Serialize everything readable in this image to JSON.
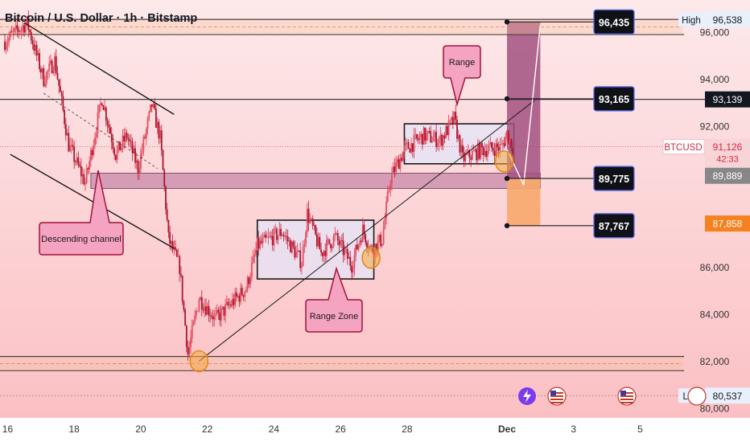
{
  "header": {
    "title": "Bitcoin / U.S. Dollar · 1h · Bitstamp"
  },
  "chart_data": {
    "type": "candlestick",
    "title": "Bitcoin / U.S. Dollar · 1h · Bitstamp",
    "symbol": "BTCUSD",
    "ylim": [
      79800,
      97000
    ],
    "y_ticks": [
      {
        "value": 96000,
        "label": "96,000"
      },
      {
        "value": 94000,
        "label": "94,000"
      },
      {
        "value": 92000,
        "label": "92,000"
      },
      {
        "value": 86000,
        "label": "86,000"
      },
      {
        "value": 84000,
        "label": "84,000"
      },
      {
        "value": 82000,
        "label": "82,000"
      },
      {
        "value": 80000,
        "label": "80,000"
      }
    ],
    "x_ticks": [
      "16",
      "18",
      "20",
      "22",
      "24",
      "26",
      "28",
      "Dec",
      "3",
      "5"
    ],
    "x_domain": [
      "2024-11-15T22:00",
      "2024-12-05T20:00"
    ],
    "x_tick_dates": [
      "2024-11-16",
      "2024-11-18",
      "2024-11-20",
      "2024-11-22",
      "2024-11-24",
      "2024-11-26",
      "2024-11-28",
      "2024-12-01",
      "2024-12-03",
      "2024-12-05"
    ],
    "price_path": [
      [
        "2024-11-15T22:00",
        95600
      ],
      [
        "2024-11-16T14:00",
        96400
      ],
      [
        "2024-11-17T02:00",
        94000
      ],
      [
        "2024-11-17T10:00",
        94800
      ],
      [
        "2024-11-17T20:00",
        91200
      ],
      [
        "2024-11-18T08:00",
        89600
      ],
      [
        "2024-11-18T20:00",
        93200
      ],
      [
        "2024-11-19T06:00",
        90800
      ],
      [
        "2024-11-19T14:00",
        91600
      ],
      [
        "2024-11-19T22:00",
        90200
      ],
      [
        "2024-11-20T08:00",
        92900
      ],
      [
        "2024-11-20T14:00",
        91500
      ],
      [
        "2024-11-20T20:00",
        87200
      ],
      [
        "2024-11-21T04:00",
        86000
      ],
      [
        "2024-11-21T10:00",
        82300
      ],
      [
        "2024-11-21T18:00",
        84700
      ],
      [
        "2024-11-22T06:00",
        83800
      ],
      [
        "2024-11-22T18:00",
        84500
      ],
      [
        "2024-11-23T04:00",
        85100
      ],
      [
        "2024-11-23T12:00",
        86900
      ],
      [
        "2024-11-24T06:00",
        87500
      ],
      [
        "2024-11-24T20:00",
        86200
      ],
      [
        "2024-11-25T00:00",
        88300
      ],
      [
        "2024-11-25T10:00",
        86600
      ],
      [
        "2024-11-25T20:00",
        87300
      ],
      [
        "2024-11-26T08:00",
        86100
      ],
      [
        "2024-11-26T16:00",
        87600
      ],
      [
        "2024-11-26T22:00",
        86700
      ],
      [
        "2024-11-27T06:00",
        87200
      ],
      [
        "2024-11-27T12:00",
        89800
      ],
      [
        "2024-11-27T22:00",
        91000
      ],
      [
        "2024-11-28T12:00",
        91600
      ],
      [
        "2024-11-29T00:00",
        91400
      ],
      [
        "2024-11-29T10:00",
        92300
      ],
      [
        "2024-11-29T16:00",
        90600
      ],
      [
        "2024-11-30T06:00",
        91000
      ],
      [
        "2024-11-30T20:00",
        91100
      ],
      [
        "2024-12-01T00:00",
        91700
      ],
      [
        "2024-12-01T04:00",
        91126
      ]
    ],
    "current_price": {
      "label": "BTCUSD",
      "value": "91,126",
      "countdown": "42:33"
    },
    "price_labels": [
      {
        "value": 96538,
        "label": "96,538",
        "title": "High",
        "color": "#e8f0fc",
        "text_color": "#1a1a1a"
      },
      {
        "value": 93139,
        "label": "93,139",
        "color": "#131722",
        "text_color": "#ffffff"
      },
      {
        "value": 89889,
        "label": "89,889",
        "color": "#878787",
        "text_color": "#ffffff"
      },
      {
        "value": 87858,
        "label": "87,858",
        "color": "#f5811f",
        "text_color": "#ffffff"
      },
      {
        "value": 80537,
        "label": "80,537",
        "title": "Low",
        "color": "#e8f0fc",
        "text_color": "#1a1a1a"
      }
    ],
    "target_labels": [
      {
        "value": 96435,
        "label": "96,435"
      },
      {
        "value": 93165,
        "label": "93,165"
      },
      {
        "value": 89775,
        "label": "89,775"
      },
      {
        "value": 87767,
        "label": "87,767"
      }
    ],
    "horizontal_levels": [
      96538,
      95900,
      93139,
      82200,
      81600,
      80537
    ],
    "zones": [
      {
        "name": "support-zone",
        "y_top": 90000,
        "y_bottom": 89350,
        "x_start": "2024-11-18T12:00",
        "x_end": "2024-12-02T00:00",
        "color": "#c88aa8"
      },
      {
        "name": "range-box-1",
        "y_top": 88000,
        "y_bottom": 85500,
        "x_start": "2024-11-23T12:00",
        "x_end": "2024-11-27T00:00"
      },
      {
        "name": "range-box-2",
        "y_top": 92100,
        "y_bottom": 90400,
        "x_start": "2024-11-27T22:00",
        "x_end": "2024-12-01T05:00"
      }
    ],
    "trade_setup": {
      "entry": 89775,
      "target": 96435,
      "stop": 87767,
      "x_start": "2024-12-01T00:00",
      "x_end": "2024-12-02T00:00",
      "profit_color": "#a25180",
      "loss_color": "#f7a86c"
    },
    "annotations": [
      {
        "text": "Descending channel"
      },
      {
        "text": "Range Zone"
      },
      {
        "text": "Range"
      }
    ],
    "colors": {
      "up": "#d42a3f",
      "down": "#c01f35",
      "background_top": "#fde5e6",
      "background_bottom": "#fbc3c6",
      "label_fill": "#f4a3c0",
      "label_stroke": "#a2133c"
    }
  }
}
